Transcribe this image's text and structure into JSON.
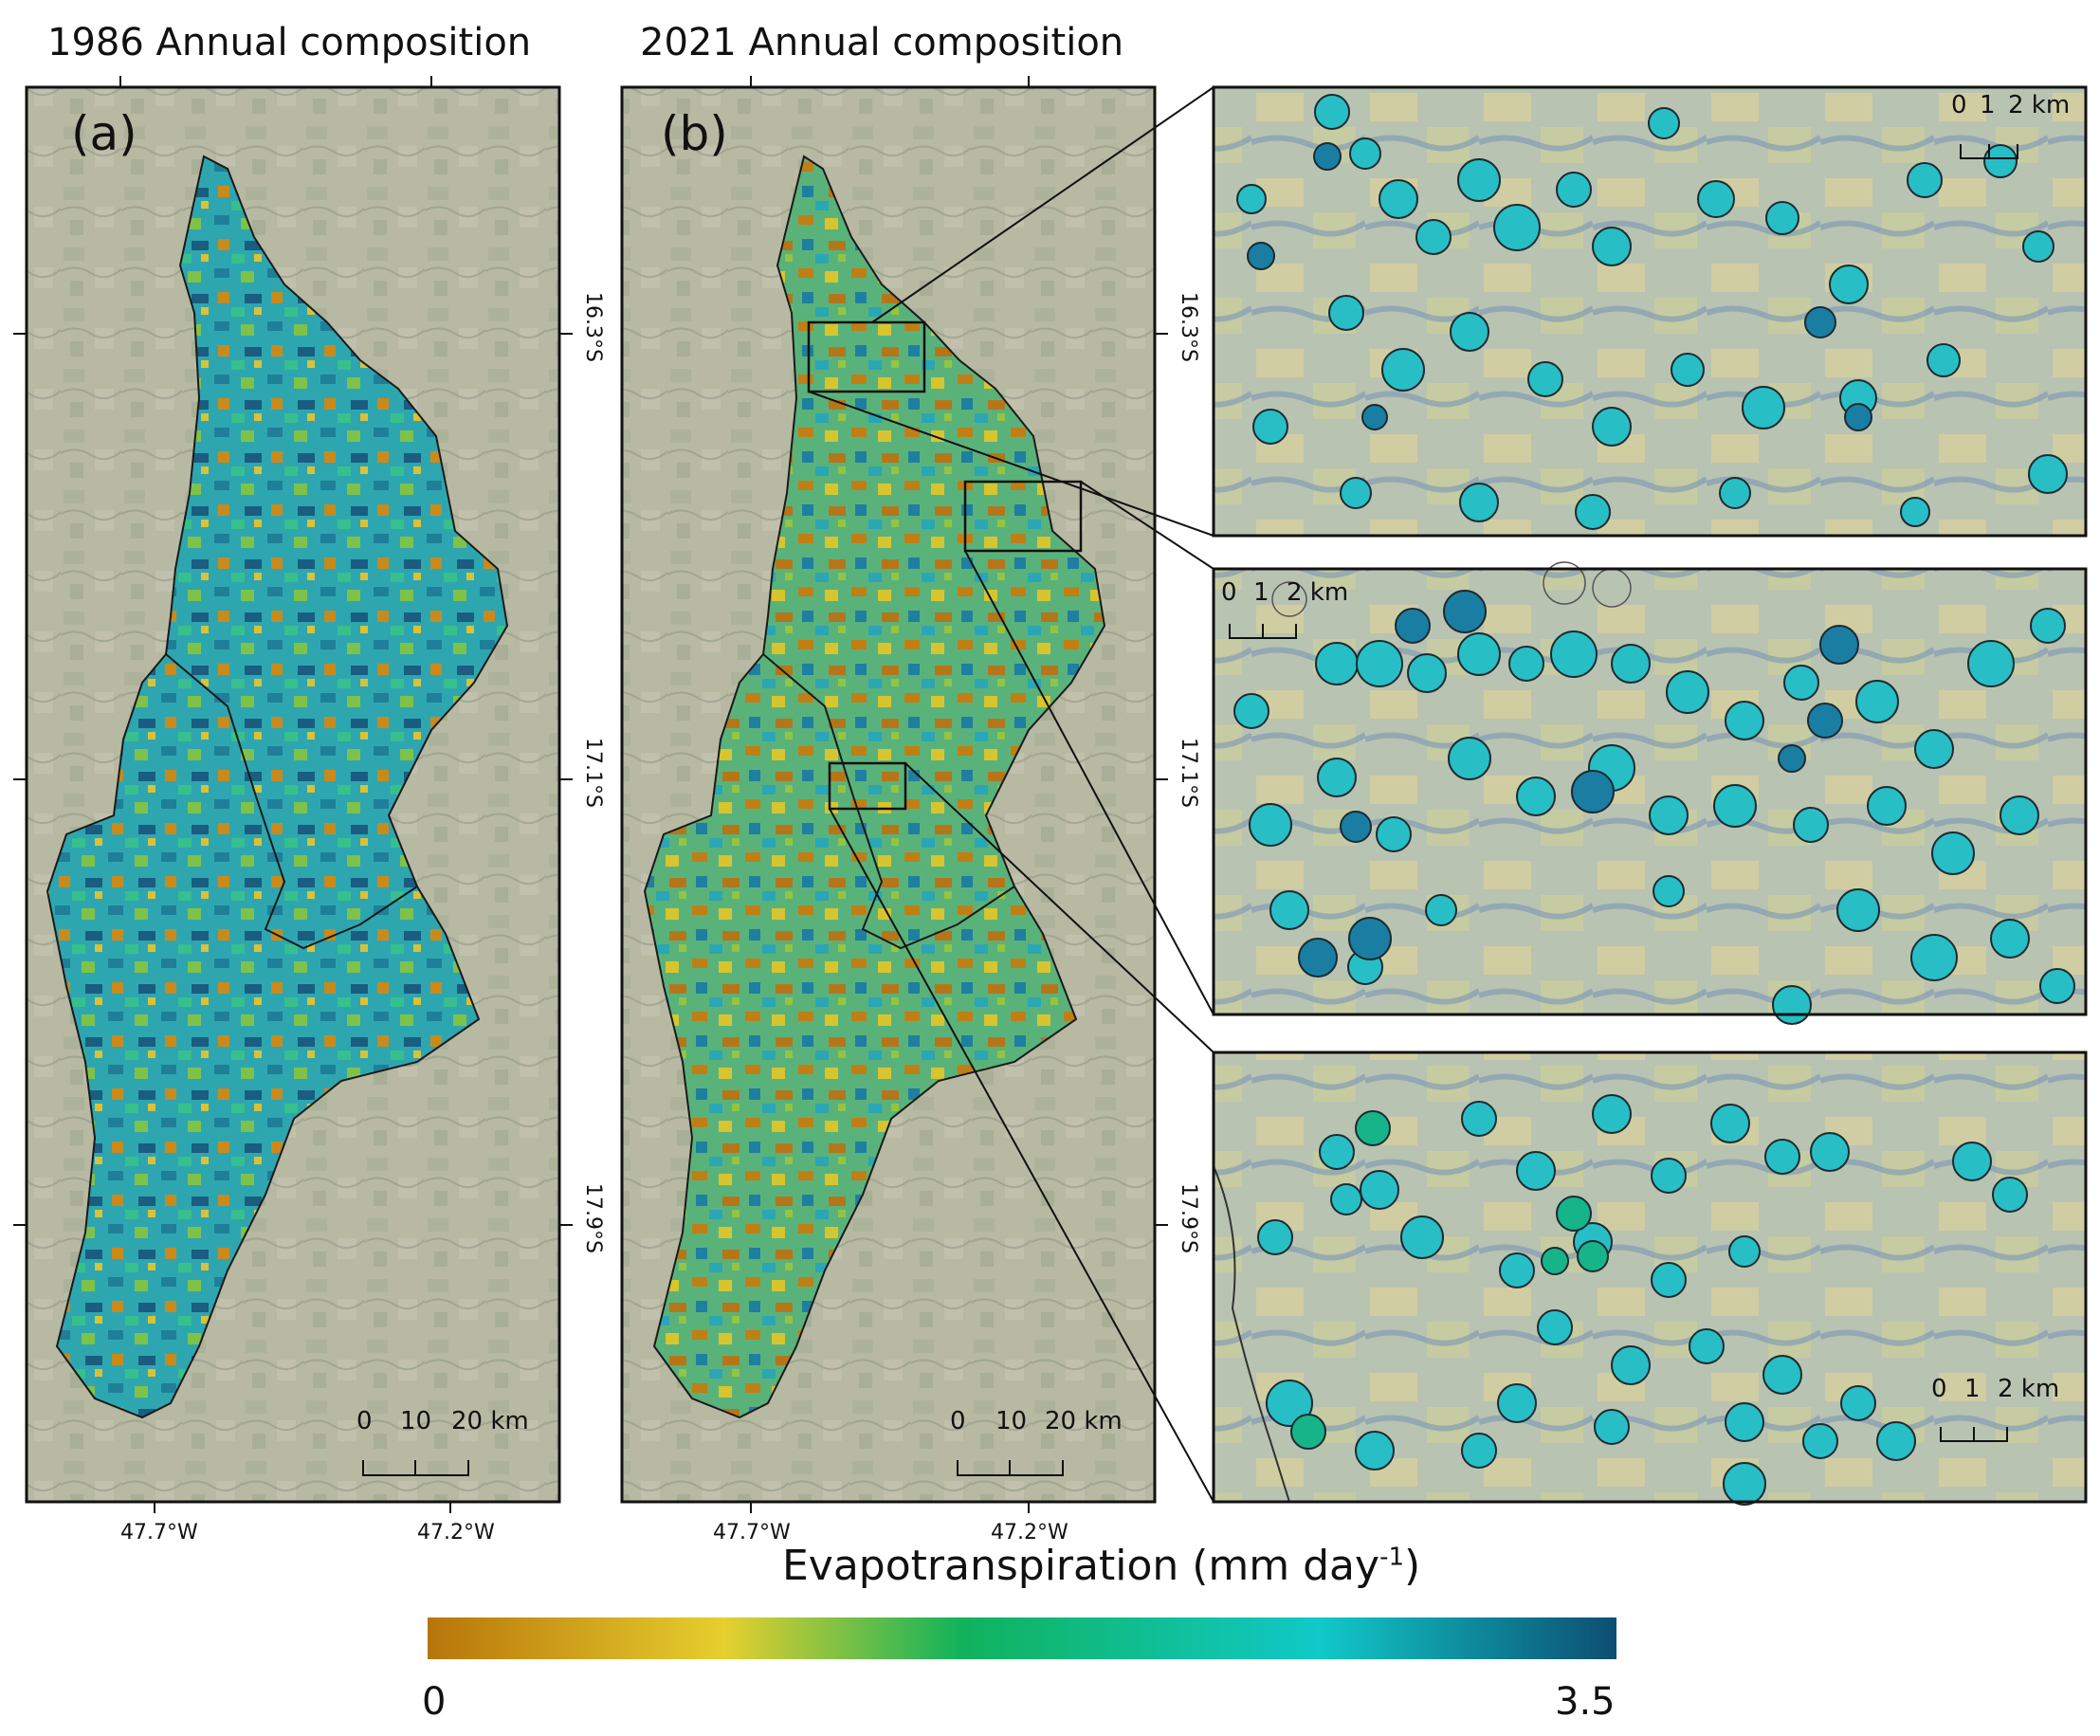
{
  "panels": [
    {
      "title": "1986 Annual composition",
      "letter": "(a)",
      "lon_ticks": [
        "47.7°W",
        "47.2°W"
      ],
      "lat_ticks": [
        "16.3°S",
        "17.1°S",
        "17.9°S"
      ],
      "scale_bar": [
        "0",
        "10",
        "20 km"
      ]
    },
    {
      "title": "2021 Annual composition",
      "letter": "(b)",
      "lon_ticks": [
        "47.7°W",
        "47.2°W"
      ],
      "lat_ticks": [
        "16.3°S",
        "17.1°S",
        "17.9°S"
      ],
      "scale_bar": [
        "0",
        "10",
        "20 km"
      ]
    }
  ],
  "insets": [
    {
      "scale_bar": [
        "0",
        "1",
        "2 km"
      ]
    },
    {
      "scale_bar": [
        "0",
        "1",
        "2 km"
      ]
    },
    {
      "scale_bar": [
        "0",
        "1",
        "2 km"
      ]
    }
  ],
  "legend": {
    "title_main": "Evapotranspiration (mm day",
    "title_sup": "-1",
    "title_end": ")",
    "min": "0",
    "max": "3.5",
    "colors": [
      "#b8750a",
      "#e6cf2e",
      "#10b25c",
      "#10c9c8",
      "#0d4e73"
    ]
  }
}
